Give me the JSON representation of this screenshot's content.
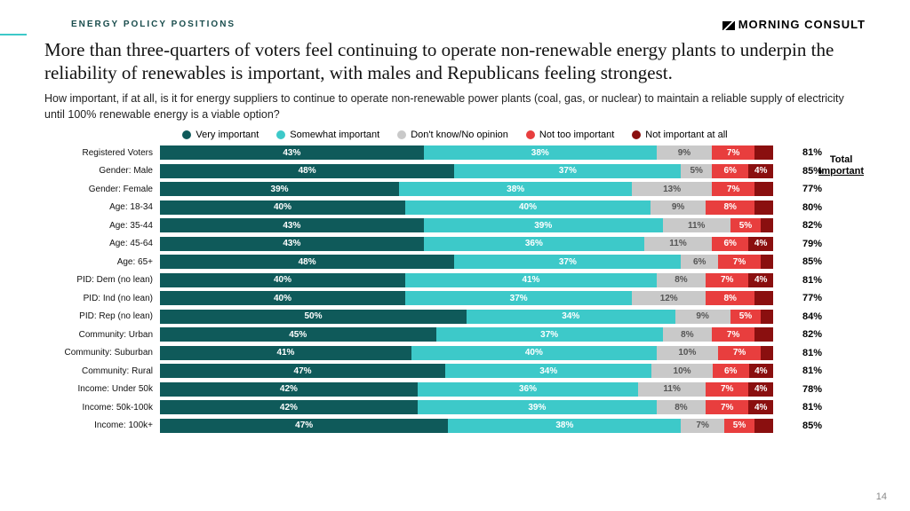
{
  "eyebrow": "ENERGY POLICY POSITIONS",
  "logo": "MORNING CONSULT",
  "headline": "More than three-quarters of voters feel continuing to operate non-renewable energy plants to underpin the reliability of renewables is important, with males and Republicans feeling strongest.",
  "subhead": "How important, if at all, is it for energy suppliers to continue to operate non-renewable power plants (coal, gas, or nuclear) to maintain a reliable supply of electricity until 100% renewable energy is a viable option?",
  "total_header_l1": "Total",
  "total_header_l2": "Important",
  "page_num": "14",
  "legend": [
    {
      "label": "Very important",
      "color": "#0f5a5a"
    },
    {
      "label": "Somewhat important",
      "color": "#3dc9c9"
    },
    {
      "label": "Don't know/No opinion",
      "color": "#c9c9c9"
    },
    {
      "label": "Not too important",
      "color": "#e83e3e"
    },
    {
      "label": "Not important at all",
      "color": "#8a0f0f"
    }
  ],
  "label_threshold": 4,
  "rows": [
    {
      "label": "Registered Voters",
      "v": [
        43,
        38,
        9,
        7,
        3
      ],
      "total": "81%"
    },
    {
      "label": "Gender: Male",
      "v": [
        48,
        37,
        5,
        6,
        4
      ],
      "total": "85%"
    },
    {
      "label": "Gender: Female",
      "v": [
        39,
        38,
        13,
        7,
        3
      ],
      "total": "77%"
    },
    {
      "label": "Age: 18-34",
      "v": [
        40,
        40,
        9,
        8,
        3
      ],
      "total": "80%"
    },
    {
      "label": "Age: 35-44",
      "v": [
        43,
        39,
        11,
        5,
        2
      ],
      "total": "82%"
    },
    {
      "label": "Age: 45-64",
      "v": [
        43,
        36,
        11,
        6,
        4
      ],
      "total": "79%"
    },
    {
      "label": "Age: 65+",
      "v": [
        48,
        37,
        6,
        7,
        2
      ],
      "total": "85%"
    },
    {
      "label": "PID: Dem (no lean)",
      "v": [
        40,
        41,
        8,
        7,
        4
      ],
      "total": "81%"
    },
    {
      "label": "PID: Ind (no lean)",
      "v": [
        40,
        37,
        12,
        8,
        3
      ],
      "total": "77%"
    },
    {
      "label": "PID: Rep (no lean)",
      "v": [
        50,
        34,
        9,
        5,
        2
      ],
      "total": "84%"
    },
    {
      "label": "Community: Urban",
      "v": [
        45,
        37,
        8,
        7,
        3
      ],
      "total": "82%"
    },
    {
      "label": "Community: Suburban",
      "v": [
        41,
        40,
        10,
        7,
        2
      ],
      "total": "81%"
    },
    {
      "label": "Community: Rural",
      "v": [
        47,
        34,
        10,
        6,
        4
      ],
      "total": "81%"
    },
    {
      "label": "Income: Under 50k",
      "v": [
        42,
        36,
        11,
        7,
        4
      ],
      "total": "78%"
    },
    {
      "label": "Income: 50k-100k",
      "v": [
        42,
        39,
        8,
        7,
        4
      ],
      "total": "81%"
    },
    {
      "label": "Income: 100k+",
      "v": [
        47,
        38,
        7,
        5,
        3
      ],
      "total": "85%"
    }
  ]
}
